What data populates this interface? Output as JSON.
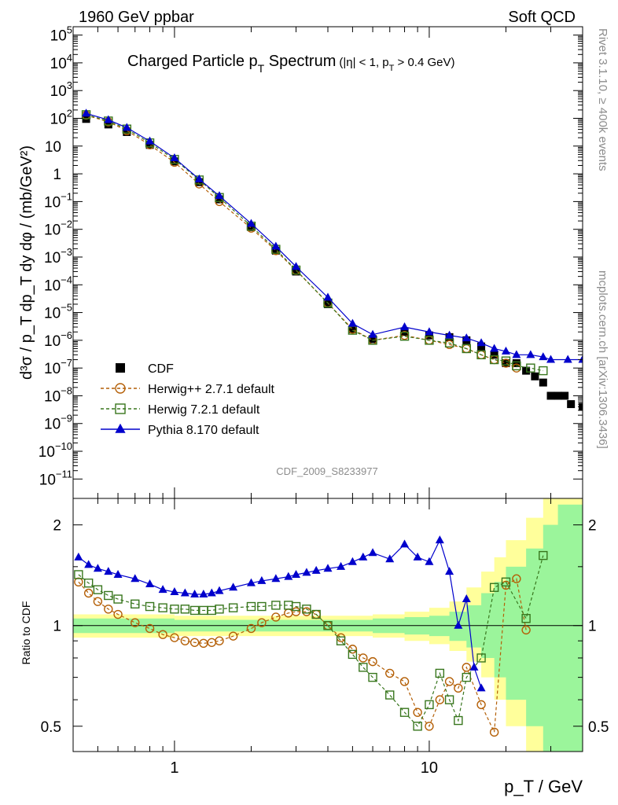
{
  "header": {
    "left": "1960 GeV ppbar",
    "right": "Soft QCD"
  },
  "side": {
    "rivet": "Rivet 3.1.10, ≥ 400k events",
    "mcplots": "mcplots.cern.ch [arXiv:1306.3436]"
  },
  "chart_data": [
    {
      "type": "scatter",
      "title": "Charged Particle p_T Spectrum",
      "title_main": "Charged Particle p",
      "title_sub": "T",
      "title_after": " Spectrum",
      "title_cut_a": "(|η| < 1, p",
      "title_cut_sub": "T",
      "title_cut_b": " > 0.4 GeV)",
      "ylabel": "d³σ / p_T dp_T dy dφ / (mb/GeV²)",
      "xlabel": "p_T / GeV",
      "x_scale": "log",
      "y_scale": "log",
      "xlim": [
        0.4,
        40
      ],
      "ylim": [
        2e-12,
        200000.0
      ],
      "watermark": "CDF_2009_S8233977",
      "legend_placement": "bottom-left",
      "y_ticks": [
        {
          "v": 100000.0,
          "base": "10",
          "exp": "5"
        },
        {
          "v": 10000.0,
          "base": "10",
          "exp": "4"
        },
        {
          "v": 1000.0,
          "base": "10",
          "exp": "3"
        },
        {
          "v": 100.0,
          "base": "10",
          "exp": "2"
        },
        {
          "v": 10,
          "base": "10",
          "exp": ""
        },
        {
          "v": 1,
          "base": "1",
          "exp": ""
        },
        {
          "v": 0.1,
          "base": "10",
          "exp": "−1"
        },
        {
          "v": 0.01,
          "base": "10",
          "exp": "−2"
        },
        {
          "v": 0.001,
          "base": "10",
          "exp": "−3"
        },
        {
          "v": 0.0001,
          "base": "10",
          "exp": "−4"
        },
        {
          "v": 1e-05,
          "base": "10",
          "exp": "−5"
        },
        {
          "v": 1e-06,
          "base": "10",
          "exp": "−6"
        },
        {
          "v": 1e-07,
          "base": "10",
          "exp": "−7"
        },
        {
          "v": 1e-08,
          "base": "10",
          "exp": "−8"
        },
        {
          "v": 1e-09,
          "base": "10",
          "exp": "−9"
        },
        {
          "v": 1e-10,
          "base": "10",
          "exp": "−10"
        },
        {
          "v": 1e-11,
          "base": "10",
          "exp": "−11"
        }
      ],
      "series": [
        {
          "name": "CDF",
          "color": "#000000",
          "marker": "square-filled",
          "x": [
            0.45,
            0.55,
            0.65,
            0.8,
            1.0,
            1.25,
            1.5,
            2.0,
            2.5,
            3.0,
            4.0,
            5.0,
            6.0,
            8.0,
            10.0,
            12.0,
            14.0,
            16.0,
            18.0,
            20.0,
            22.0,
            24.0,
            26.0,
            28.0,
            30.0,
            32.0,
            34.0,
            36.0,
            40.0
          ],
          "y": [
            95,
            60,
            32,
            11,
            2.8,
            0.5,
            0.12,
            0.012,
            0.0017,
            0.0003,
            2e-05,
            2.5e-06,
            1.1e-06,
            2e-06,
            1.5e-06,
            1.3e-06,
            1e-06,
            6e-07,
            3e-07,
            1.5e-07,
            1.5e-07,
            8e-08,
            5e-08,
            3e-08,
            1e-08,
            1e-08,
            1e-08,
            5e-09,
            4e-09
          ]
        },
        {
          "name": "Herwig++ 2.7.1 default",
          "color": "#b45f06",
          "marker": "circle-open",
          "x": [
            0.45,
            0.55,
            0.65,
            0.8,
            1.0,
            1.25,
            1.5,
            2.0,
            2.5,
            3.0,
            4.0,
            5.0,
            6.0,
            8.0,
            10.0,
            12.0,
            14.0,
            16.0,
            18.0,
            20.0,
            22.0
          ],
          "y": [
            130,
            75,
            36,
            11,
            2.6,
            0.43,
            0.1,
            0.011,
            0.0017,
            0.00033,
            2.2e-05,
            2.5e-06,
            1e-06,
            1.5e-06,
            1e-06,
            7e-07,
            5e-07,
            3e-07,
            2e-07,
            1.5e-07,
            1e-07
          ]
        },
        {
          "name": "Herwig 7.2.1 default",
          "color": "#38761d",
          "marker": "square-open",
          "x": [
            0.45,
            0.55,
            0.65,
            0.8,
            1.0,
            1.25,
            1.5,
            2.0,
            2.5,
            3.0,
            4.0,
            5.0,
            6.0,
            8.0,
            10.0,
            12.0,
            14.0,
            16.0,
            18.0,
            20.0,
            22.0,
            25.0,
            28.0
          ],
          "y": [
            135,
            80,
            41,
            13,
            3.3,
            0.6,
            0.14,
            0.013,
            0.0019,
            0.00034,
            2.2e-05,
            2.3e-06,
            1e-06,
            1.4e-06,
            1e-06,
            8e-07,
            5e-07,
            3e-07,
            2e-07,
            1.8e-07,
            1.2e-07,
            1e-07,
            8e-08
          ]
        },
        {
          "name": "Pythia 8.170 default",
          "color": "#0000cc",
          "marker": "triangle-filled",
          "x": [
            0.45,
            0.55,
            0.65,
            0.8,
            1.0,
            1.25,
            1.5,
            2.0,
            2.5,
            3.0,
            4.0,
            5.0,
            6.0,
            8.0,
            10.0,
            12.0,
            14.0,
            16.0,
            18.0,
            20.0,
            22.0,
            25.0,
            28.0,
            30.0,
            35.0,
            40.0
          ],
          "y": [
            150,
            88,
            46,
            15,
            3.7,
            0.64,
            0.16,
            0.016,
            0.0024,
            0.00045,
            3.5e-05,
            4e-06,
            1.6e-06,
            3e-06,
            2e-06,
            1.5e-06,
            1.2e-06,
            8e-07,
            5e-07,
            4e-07,
            3e-07,
            3e-07,
            2.5e-07,
            2e-07,
            2e-07,
            2e-07
          ]
        }
      ]
    },
    {
      "type": "scatter",
      "ylabel": "Ratio to CDF",
      "xlabel": "p_T / GeV",
      "x_scale": "log",
      "y_scale": "log",
      "xlim": [
        0.4,
        40
      ],
      "ylim": [
        0.42,
        2.4
      ],
      "y_ticks": [
        {
          "v": 0.5,
          "label": "0.5"
        },
        {
          "v": 1,
          "label": "1"
        },
        {
          "v": 2,
          "label": "2"
        }
      ],
      "x_ticks": [
        {
          "v": 1,
          "label": "1"
        },
        {
          "v": 10,
          "label": "10"
        }
      ],
      "reference_line": 1,
      "uncertainty_bands": {
        "x": [
          0.4,
          1.0,
          2.0,
          4.0,
          6.0,
          8.0,
          10.0,
          12.0,
          14.0,
          16.0,
          18.0,
          20.0,
          24.0,
          28.0,
          32.0,
          40.0
        ],
        "inner_lo": [
          0.95,
          0.96,
          0.96,
          0.96,
          0.95,
          0.94,
          0.93,
          0.9,
          0.86,
          0.8,
          0.7,
          0.6,
          0.5,
          0.4,
          0.35,
          0.3
        ],
        "inner_hi": [
          1.05,
          1.04,
          1.04,
          1.04,
          1.05,
          1.06,
          1.07,
          1.1,
          1.15,
          1.25,
          1.35,
          1.5,
          1.7,
          2.0,
          2.3,
          2.5
        ],
        "outer_lo": [
          0.92,
          0.93,
          0.93,
          0.93,
          0.92,
          0.9,
          0.88,
          0.84,
          0.78,
          0.7,
          0.6,
          0.5,
          0.42,
          0.35,
          0.3,
          0.3
        ],
        "outer_hi": [
          1.08,
          1.07,
          1.07,
          1.07,
          1.08,
          1.1,
          1.13,
          1.18,
          1.3,
          1.45,
          1.6,
          1.8,
          2.1,
          2.5,
          2.8,
          3.0
        ],
        "inner_color": "#9bf59b",
        "outer_color": "#ffff9b"
      },
      "series": [
        {
          "name": "Herwig++ 2.7.1 default",
          "color": "#b45f06",
          "x": [
            0.42,
            0.46,
            0.5,
            0.55,
            0.6,
            0.7,
            0.8,
            0.9,
            1.0,
            1.1,
            1.2,
            1.3,
            1.4,
            1.5,
            1.7,
            2.0,
            2.2,
            2.5,
            2.8,
            3.0,
            3.3,
            3.6,
            4.0,
            4.5,
            5.0,
            5.5,
            6.0,
            7.0,
            8.0,
            9.0,
            10.0,
            11.0,
            12.0,
            13.0,
            14.0,
            16.0,
            18.0,
            20.0,
            22.0,
            24.0
          ],
          "y": [
            1.35,
            1.25,
            1.18,
            1.12,
            1.08,
            1.02,
            0.98,
            0.94,
            0.92,
            0.9,
            0.89,
            0.885,
            0.89,
            0.9,
            0.93,
            0.98,
            1.02,
            1.06,
            1.09,
            1.1,
            1.1,
            1.08,
            1.0,
            0.92,
            0.85,
            0.8,
            0.78,
            0.72,
            0.68,
            0.55,
            0.5,
            0.6,
            0.68,
            0.65,
            0.75,
            0.58,
            0.48,
            1.32,
            1.38,
            0.97
          ]
        },
        {
          "name": "Herwig 7.2.1 default",
          "color": "#38761d",
          "x": [
            0.42,
            0.46,
            0.5,
            0.55,
            0.6,
            0.7,
            0.8,
            0.9,
            1.0,
            1.1,
            1.2,
            1.3,
            1.4,
            1.5,
            1.7,
            2.0,
            2.2,
            2.5,
            2.8,
            3.0,
            3.3,
            3.6,
            4.0,
            4.5,
            5.0,
            5.5,
            6.0,
            7.0,
            8.0,
            9.0,
            10.0,
            11.0,
            12.0,
            13.0,
            14.0,
            16.0,
            18.0,
            20.0,
            24.0,
            28.0
          ],
          "y": [
            1.42,
            1.34,
            1.28,
            1.23,
            1.2,
            1.16,
            1.14,
            1.13,
            1.12,
            1.12,
            1.11,
            1.11,
            1.11,
            1.12,
            1.13,
            1.14,
            1.14,
            1.15,
            1.15,
            1.14,
            1.12,
            1.08,
            1.0,
            0.9,
            0.82,
            0.75,
            0.7,
            0.62,
            0.55,
            0.5,
            0.58,
            0.72,
            0.6,
            0.52,
            0.7,
            0.8,
            1.3,
            1.35,
            1.05,
            1.62
          ]
        },
        {
          "name": "Pythia 8.170 default",
          "color": "#0000cc",
          "x": [
            0.42,
            0.46,
            0.5,
            0.55,
            0.6,
            0.7,
            0.8,
            0.9,
            1.0,
            1.1,
            1.2,
            1.3,
            1.4,
            1.5,
            1.7,
            2.0,
            2.2,
            2.5,
            2.8,
            3.0,
            3.3,
            3.6,
            4.0,
            4.5,
            5.0,
            5.5,
            6.0,
            7.0,
            8.0,
            9.0,
            10.0,
            11.0,
            12.0,
            13.0,
            14.0,
            15.0,
            16.0
          ],
          "y": [
            1.6,
            1.52,
            1.48,
            1.45,
            1.42,
            1.38,
            1.33,
            1.28,
            1.26,
            1.25,
            1.24,
            1.24,
            1.25,
            1.27,
            1.3,
            1.34,
            1.36,
            1.38,
            1.4,
            1.42,
            1.44,
            1.46,
            1.48,
            1.5,
            1.55,
            1.6,
            1.65,
            1.58,
            1.75,
            1.6,
            1.55,
            1.8,
            1.45,
            1.0,
            1.2,
            0.75,
            0.65
          ]
        }
      ]
    }
  ]
}
